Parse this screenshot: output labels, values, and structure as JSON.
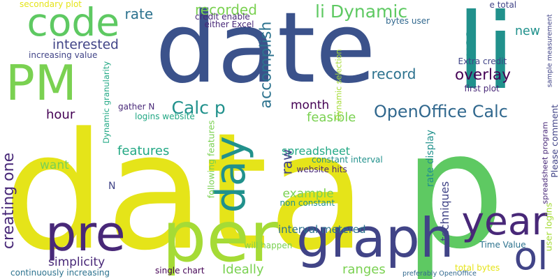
{
  "colors": {
    "yellow": "#e5e419",
    "lime": "#a5db36",
    "green": "#5ec962",
    "mint": "#7ad151",
    "teal": "#21918c",
    "seagreen": "#2db27d",
    "cyan": "#22a884",
    "blue": "#3b528b",
    "steel": "#2c728e",
    "slate": "#31688e",
    "indigo": "#414487",
    "purple": "#482878",
    "dark": "#440154"
  },
  "words": [
    {
      "text": "data",
      "color": "yellow"
    },
    {
      "text": "p",
      "color": "green"
    },
    {
      "text": "date",
      "color": "blue"
    },
    {
      "text": "li",
      "color": "teal"
    },
    {
      "text": "graph",
      "color": "indigo"
    },
    {
      "text": "per",
      "color": "lime"
    },
    {
      "text": "pre",
      "color": "purple"
    },
    {
      "text": "PM",
      "color": "mint"
    },
    {
      "text": "code",
      "color": "green"
    },
    {
      "text": "year",
      "color": "purple"
    },
    {
      "text": "ol",
      "color": "indigo"
    },
    {
      "text": "day",
      "color": "teal"
    },
    {
      "text": "li Dynamic",
      "color": "green"
    },
    {
      "text": "OpenOffice Calc",
      "color": "slate"
    },
    {
      "text": "Calc p",
      "color": "teal"
    },
    {
      "text": "recorded",
      "color": "mint"
    },
    {
      "text": "rate",
      "color": "steel"
    },
    {
      "text": "interested",
      "color": "indigo"
    },
    {
      "text": "record",
      "color": "steel"
    },
    {
      "text": "overlay",
      "color": "dark"
    },
    {
      "text": "accomplish",
      "color": "steel"
    },
    {
      "text": "use",
      "color": "teal"
    },
    {
      "text": "new",
      "color": "teal"
    },
    {
      "text": "month",
      "color": "dark"
    },
    {
      "text": "feasible",
      "color": "mint"
    },
    {
      "text": "hour",
      "color": "dark"
    },
    {
      "text": "features",
      "color": "cyan"
    },
    {
      "text": "spreadsheet",
      "color": "cyan"
    },
    {
      "text": "raw",
      "color": "indigo"
    },
    {
      "text": "want",
      "color": "mint"
    },
    {
      "text": "N",
      "color": "indigo"
    },
    {
      "text": "example",
      "color": "mint"
    },
    {
      "text": "techniques",
      "color": "indigo"
    },
    {
      "text": "creating one",
      "color": "purple"
    },
    {
      "text": "interval metered",
      "color": "steel"
    },
    {
      "text": "simplicity",
      "color": "purple"
    },
    {
      "text": "Ideally",
      "color": "mint"
    },
    {
      "text": "ranges",
      "color": "mint"
    },
    {
      "text": "secondary plot",
      "color": "yellow"
    },
    {
      "text": "increasing value",
      "color": "indigo"
    },
    {
      "text": "credit enable",
      "color": "purple"
    },
    {
      "text": "either Excel",
      "color": "purple"
    },
    {
      "text": "bytes user",
      "color": "slate"
    },
    {
      "text": "e total",
      "color": "indigo"
    },
    {
      "text": "Extra credit",
      "color": "indigo"
    },
    {
      "text": "first plot",
      "color": "purple"
    },
    {
      "text": "sample measurement",
      "color": "indigo"
    },
    {
      "text": "Dynamic selection",
      "color": "lime"
    },
    {
      "text": "Dynamic granularity",
      "color": "cyan"
    },
    {
      "text": "gather N",
      "color": "purple"
    },
    {
      "text": "logins website",
      "color": "cyan"
    },
    {
      "text": "following features",
      "color": "mint"
    },
    {
      "text": "constant interval",
      "color": "teal"
    },
    {
      "text": "website hits",
      "color": "purple"
    },
    {
      "text": "non constant",
      "color": "teal"
    },
    {
      "text": "rate display",
      "color": "teal"
    },
    {
      "text": "will happen",
      "color": "mint"
    },
    {
      "text": "Time Value",
      "color": "steel"
    },
    {
      "text": "user logins",
      "color": "lime"
    },
    {
      "text": "spreadsheet program",
      "color": "purple"
    },
    {
      "text": "Please comment",
      "color": "indigo"
    },
    {
      "text": "continuously increasing",
      "color": "steel"
    },
    {
      "text": "single chart",
      "color": "dark"
    },
    {
      "text": "preferably OpenOffice",
      "color": "slate"
    },
    {
      "text": "total bytes",
      "color": "yellow"
    }
  ]
}
